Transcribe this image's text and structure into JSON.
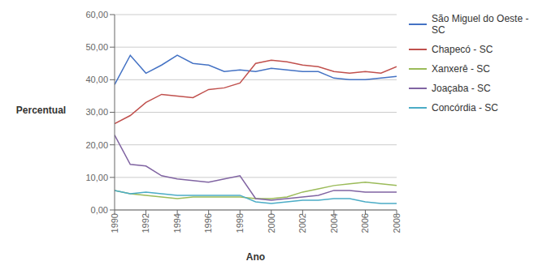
{
  "chart_data": {
    "type": "line",
    "x": [
      1990,
      1991,
      1992,
      1993,
      1994,
      1995,
      1996,
      1997,
      1998,
      1999,
      2000,
      2001,
      2002,
      2003,
      2004,
      2005,
      2006,
      2007,
      2008
    ],
    "series": [
      {
        "name": "São Miguel do Oeste -\nSC",
        "color": "#4472C4",
        "values": [
          38.5,
          47.5,
          42.0,
          44.5,
          47.5,
          45.0,
          44.5,
          42.5,
          43.0,
          42.5,
          43.5,
          43.0,
          42.5,
          42.5,
          40.5,
          40.0,
          40.0,
          40.5,
          41.0
        ]
      },
      {
        "name": "Chapecó - SC",
        "color": "#C0504D",
        "values": [
          26.5,
          29.0,
          33.0,
          35.5,
          35.0,
          34.5,
          37.0,
          37.5,
          39.0,
          45.0,
          46.0,
          45.5,
          44.5,
          44.0,
          42.5,
          42.0,
          42.5,
          42.0,
          44.0
        ]
      },
      {
        "name": "Xanxerê - SC",
        "color": "#9BBB59",
        "values": [
          6.0,
          5.0,
          4.5,
          4.0,
          3.5,
          4.0,
          4.0,
          4.0,
          4.0,
          3.5,
          3.5,
          4.0,
          5.5,
          6.5,
          7.5,
          8.0,
          8.5,
          8.0,
          7.5
        ]
      },
      {
        "name": "Joaçaba - SC",
        "color": "#8064A2",
        "values": [
          23.0,
          14.0,
          13.5,
          10.5,
          9.5,
          9.0,
          8.5,
          9.5,
          10.5,
          3.5,
          3.0,
          3.5,
          4.0,
          4.5,
          6.0,
          6.0,
          5.5,
          5.5,
          5.5
        ]
      },
      {
        "name": "Concórdia - SC",
        "color": "#4BACC6",
        "values": [
          6.0,
          5.0,
          5.5,
          5.0,
          4.5,
          4.5,
          4.5,
          4.5,
          4.5,
          2.5,
          2.0,
          2.5,
          3.0,
          3.0,
          3.5,
          3.5,
          2.5,
          2.0,
          2.0
        ]
      }
    ],
    "xlabel": "Ano",
    "ylabel": "Percentual",
    "xlim": [
      1990,
      2008
    ],
    "xticks": [
      1990,
      1992,
      1994,
      1996,
      1998,
      2000,
      2002,
      2004,
      2006,
      2008
    ],
    "ylim": [
      0,
      60
    ],
    "yticks": [
      {
        "value": 0,
        "label": "0,00"
      },
      {
        "value": 10,
        "label": "10,00"
      },
      {
        "value": 20,
        "label": "20,00"
      },
      {
        "value": 30,
        "label": "30,00"
      },
      {
        "value": 40,
        "label": "40,00"
      },
      {
        "value": 50,
        "label": "50,00"
      },
      {
        "value": 60,
        "label": "60,00"
      }
    ],
    "grid": true,
    "legend": "right"
  }
}
